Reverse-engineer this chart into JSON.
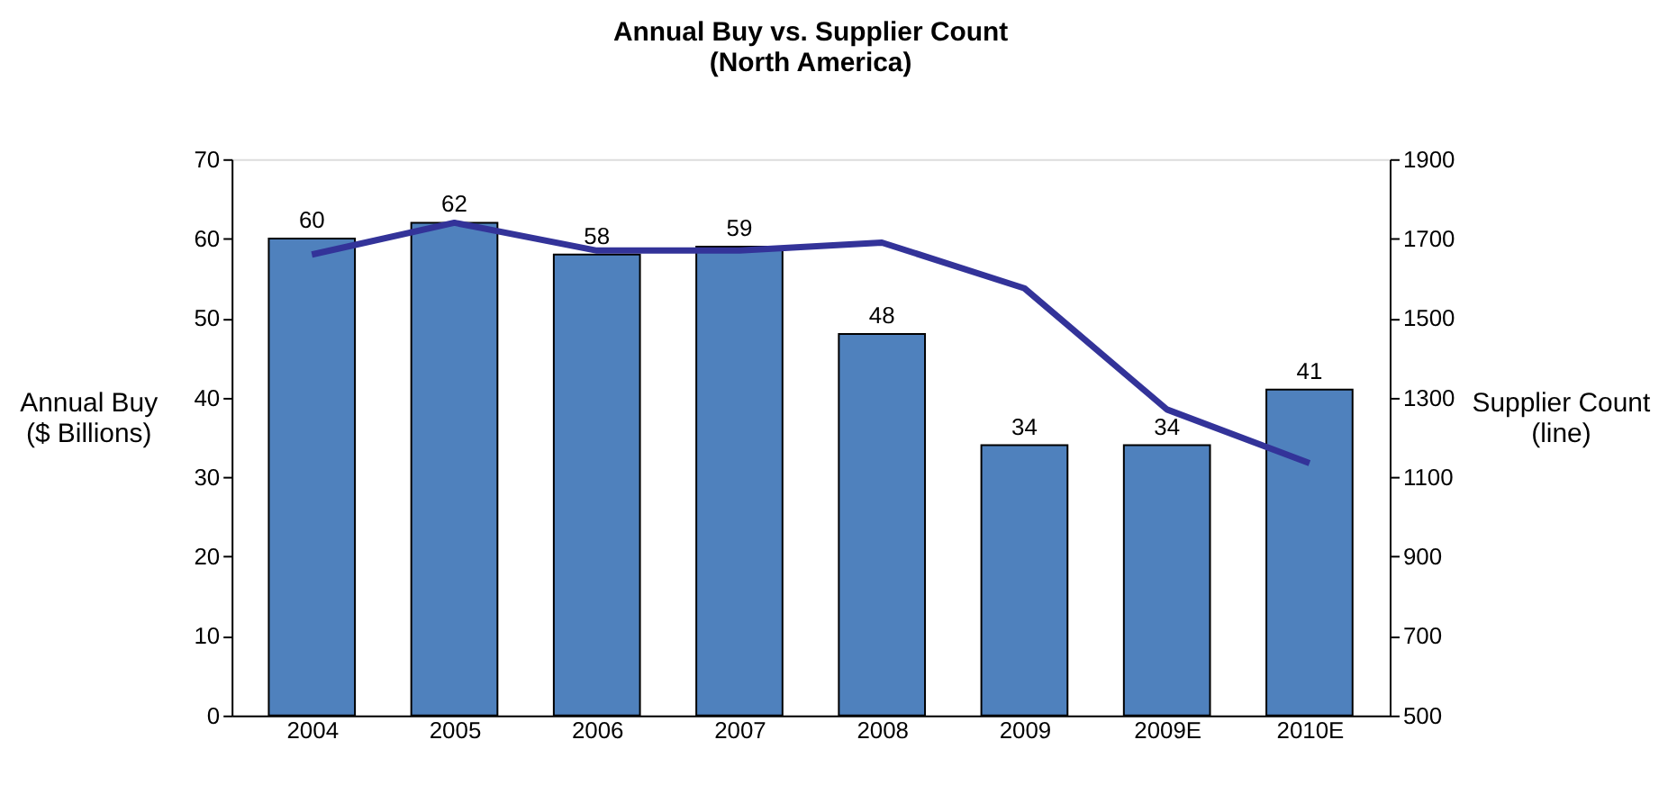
{
  "chart_data": {
    "type": "bar",
    "title": "Annual Buy vs. Supplier Count\n(North America)",
    "ylabel": "Annual Buy\n($ Billions)",
    "y2label": "Supplier Count\n(line)",
    "categories": [
      "2004",
      "2005",
      "2006",
      "2007",
      "2008",
      "2009",
      "2009E",
      "2010E"
    ],
    "series": [
      {
        "color": "#4f81bd",
        "values": [
          60,
          62,
          58,
          59,
          48,
          34,
          34,
          41
        ],
        "value_labels": [
          "60",
          "62",
          "58",
          "59",
          "48",
          "34",
          "34",
          "41"
        ]
      },
      {
        "type": "line",
        "axis": "y2",
        "color": "#333399",
        "values": [
          1660,
          1740,
          1670,
          1670,
          1690,
          1575,
          1270,
          1135
        ]
      }
    ],
    "ylim": [
      0,
      70
    ],
    "yticks": [
      0,
      10,
      20,
      30,
      40,
      50,
      60,
      70
    ],
    "y2lim": [
      500,
      1900
    ],
    "y2ticks": [
      500,
      700,
      900,
      1100,
      1300,
      1500,
      1700,
      1900
    ],
    "grid": false
  }
}
